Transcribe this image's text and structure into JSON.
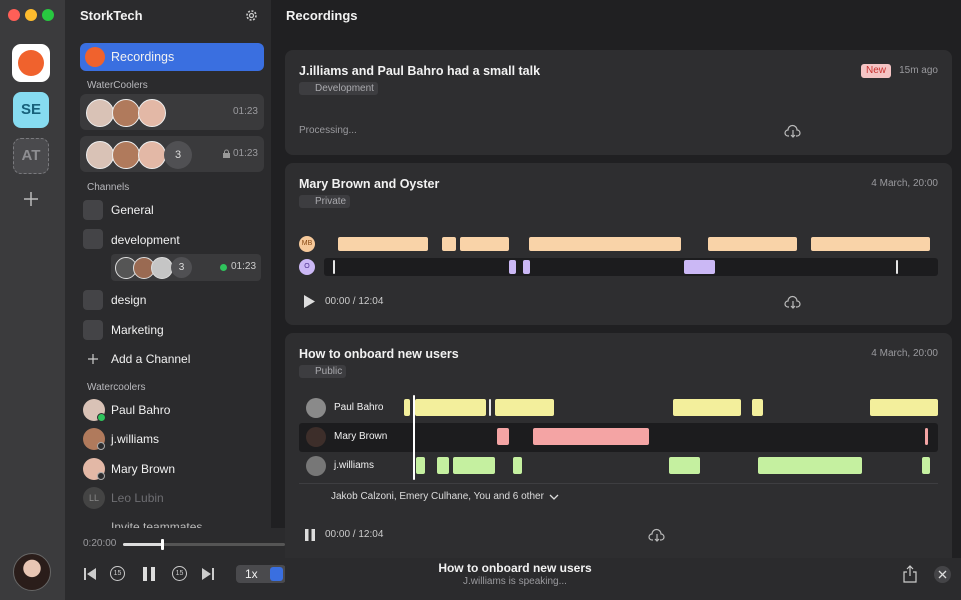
{
  "rail": {
    "workspaces": [
      "SE",
      "AT"
    ]
  },
  "sidebar": {
    "title": "StorkTech",
    "nav": {
      "recordings": "Recordings"
    },
    "watercoolers_header": "WaterCoolers",
    "watercoolers": [
      {
        "time": "01:23"
      },
      {
        "count": "3",
        "time": "01:23"
      }
    ],
    "channels_header": "Channels",
    "channels": [
      "General",
      "development",
      "design",
      "Marketing"
    ],
    "development_call": {
      "count": "3",
      "time": "01:23"
    },
    "add_channel": "Add a Channel",
    "people_header": "Watercoolers",
    "people": [
      {
        "name": "Paul Bahro"
      },
      {
        "name": "j.williams"
      },
      {
        "name": "Mary Brown"
      },
      {
        "name": "Leo Lubin",
        "initials": "LL"
      }
    ],
    "invite": "Invite teammates"
  },
  "player": {
    "elapsed": "0:20:00",
    "skip_back": "15",
    "skip_forward": "15",
    "rate": "1x"
  },
  "main": {
    "title": "Recordings",
    "recordings": [
      {
        "title": "J.illiams and Paul Bahro had a small talk",
        "tag": "Development",
        "badge": "New",
        "time": "15m ago",
        "status": "Processing..."
      },
      {
        "title": "Mary Brown and Oyster",
        "tag": "Private",
        "time": "4 March, 20:00",
        "speakers": [
          "MB",
          "O"
        ],
        "position": "00:00 / 12:04"
      },
      {
        "title": "How to onboard new users",
        "tag": "Public",
        "time": "4 March, 20:00",
        "speakers": [
          "Paul Bahro",
          "Mary Brown",
          "j.williams"
        ],
        "participants": "Jakob Calzoni, Emery Culhane, You and 6 other",
        "position": "00:00 / 12:04"
      }
    ]
  },
  "now_playing": {
    "title": "How to onboard new users",
    "status": "J.williams is speaking..."
  }
}
